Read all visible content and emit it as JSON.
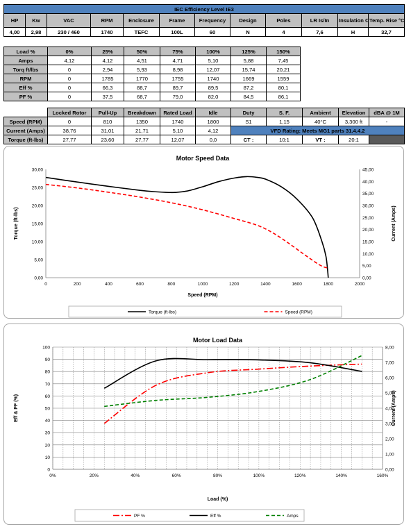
{
  "spec_table": {
    "title": "IEC Efficiency Level IE3",
    "headers": [
      "HP",
      "Kw",
      "VAC",
      "RPM",
      "Enclosure",
      "Frame",
      "Frequency",
      "Design",
      "Poles",
      "LR Is/In",
      "Insulation Class",
      "Temp. Rise °C"
    ],
    "values": [
      "4,00",
      "2,98",
      "230 / 460",
      "1740",
      "TEFC",
      "100L",
      "60",
      "N",
      "4",
      "7,6",
      "H",
      "32,7"
    ]
  },
  "load_table": {
    "headers": [
      "Load %",
      "0%",
      "25%",
      "50%",
      "75%",
      "100%",
      "125%",
      "150%"
    ],
    "rows": [
      [
        "Amps",
        "4,12",
        "4,12",
        "4,51",
        "4,71",
        "5,10",
        "5,88",
        "7,45"
      ],
      [
        "Torq ft/lbs",
        "0",
        "2,94",
        "5,93",
        "8,98",
        "12,07",
        "15,74",
        "20,21"
      ],
      [
        "RPM",
        "0",
        "1785",
        "1770",
        "1755",
        "1740",
        "1669",
        "1559"
      ],
      [
        "Eff %",
        "0",
        "66,3",
        "88,7",
        "89,7",
        "89,5",
        "87,2",
        "80,1"
      ],
      [
        "PF %",
        "0",
        "37,5",
        "68,7",
        "79,0",
        "82,0",
        "84,5",
        "86,1"
      ]
    ]
  },
  "perf_table": {
    "headers": [
      "",
      "Locked Rotor",
      "Pull-Up",
      "Breakdown",
      "Rated Load",
      "Idle",
      "Duty",
      "S. F.",
      "Ambient",
      "Elevation",
      "dBA @ 1M"
    ],
    "rows": [
      [
        "Speed (RPM)",
        "0",
        "810",
        "1350",
        "1740",
        "1800",
        "S1",
        "1,15",
        "40°C",
        "3,300 ft",
        "-"
      ],
      [
        "Current (Amps)",
        "38,76",
        "31,01",
        "21,71",
        "5,10",
        "4,12"
      ],
      [
        "Torque (ft-lbs)",
        "27,77",
        "23,60",
        "27,77",
        "12,07",
        "0,0"
      ]
    ],
    "vfd_rating": "VFD Rating: Meets MG1 parts 31.4.4.2",
    "ct_label": "CT :",
    "ct_value": "10:1",
    "vt_label": "VT :",
    "vt_value": "20:1"
  },
  "chart_data": [
    {
      "type": "line",
      "title": "Motor Speed Data",
      "xlabel": "Speed (RPM)",
      "ylabel": "Torque (ft-lbs)",
      "y2label": "Current (Amps)",
      "xlim": [
        0,
        2000
      ],
      "ylim": [
        0,
        30
      ],
      "y2lim": [
        0,
        45
      ],
      "xticks": [
        "0",
        "200",
        "400",
        "600",
        "800",
        "1000",
        "1200",
        "1400",
        "1600",
        "1800",
        "2000"
      ],
      "yticks": [
        "0,00",
        "5,00",
        "10,00",
        "15,00",
        "20,00",
        "25,00",
        "30,00"
      ],
      "y2ticks": [
        "0,00",
        "5,00",
        "10,00",
        "15,00",
        "20,00",
        "25,00",
        "30,00",
        "35,00",
        "40,00",
        "45,00"
      ],
      "legend": "bottom",
      "series": [
        {
          "name": "Torque (ft-lbs)",
          "axis": "left",
          "color": "#000000",
          "dash": "solid",
          "x": [
            0,
            200,
            400,
            600,
            700,
            810,
            900,
            1000,
            1100,
            1200,
            1280,
            1350,
            1400,
            1500,
            1600,
            1700,
            1760,
            1785,
            1795,
            1800
          ],
          "y": [
            27.77,
            26.5,
            25.3,
            24.2,
            23.8,
            23.6,
            24.0,
            25.2,
            26.6,
            27.6,
            28.0,
            27.77,
            27.3,
            25.2,
            21.8,
            16.6,
            10.0,
            6.0,
            2.5,
            0.0
          ]
        },
        {
          "name": "Speed (RPM)",
          "axis": "right",
          "color": "#ff0000",
          "dash": "dashed",
          "x": [
            0,
            200,
            400,
            600,
            810,
            1000,
            1200,
            1350,
            1450,
            1550,
            1650,
            1740,
            1780,
            1800
          ],
          "y": [
            38.76,
            37.3,
            35.5,
            33.5,
            31.01,
            28.2,
            24.6,
            21.71,
            18.5,
            14.2,
            9.5,
            5.5,
            4.3,
            4.12
          ]
        }
      ]
    },
    {
      "type": "line",
      "title": "Motor Load Data",
      "xlabel": "Load (%)",
      "ylabel": "Eff & PF (%)",
      "y2label": "Current (Amps)",
      "xlim": [
        0,
        160
      ],
      "ylim": [
        0,
        100
      ],
      "y2lim": [
        0,
        8
      ],
      "xticks": [
        "0%",
        "20%",
        "40%",
        "60%",
        "80%",
        "100%",
        "120%",
        "140%",
        "160%"
      ],
      "yticks": [
        "0",
        "10",
        "20",
        "30",
        "40",
        "50",
        "60",
        "70",
        "80",
        "90",
        "100"
      ],
      "y2ticks": [
        "0,00",
        "1,00",
        "2,00",
        "3,00",
        "4,00",
        "5,00",
        "6,00",
        "7,00",
        "8,00"
      ],
      "legend": "bottom",
      "series": [
        {
          "name": "PF %",
          "axis": "left",
          "color": "#ff0000",
          "dash": "dashdot",
          "x": [
            25,
            50,
            75,
            100,
            125,
            150
          ],
          "y": [
            37.5,
            68.7,
            79.0,
            82.0,
            84.5,
            86.1
          ]
        },
        {
          "name": "Eff %",
          "axis": "left",
          "color": "#000000",
          "dash": "solid",
          "x": [
            25,
            50,
            75,
            100,
            125,
            150
          ],
          "y": [
            66.3,
            88.7,
            89.7,
            89.5,
            87.2,
            80.1
          ]
        },
        {
          "name": "Amps",
          "axis": "right",
          "color": "#008000",
          "dash": "dashed",
          "x": [
            25,
            50,
            75,
            100,
            125,
            150
          ],
          "y": [
            4.12,
            4.51,
            4.71,
            5.1,
            5.88,
            7.45
          ]
        }
      ]
    }
  ]
}
